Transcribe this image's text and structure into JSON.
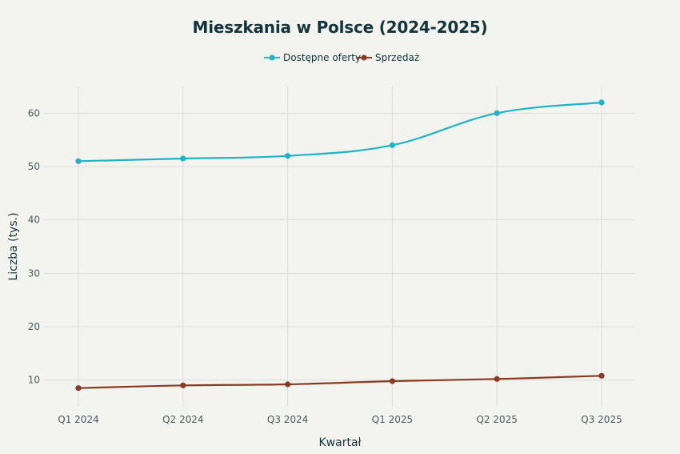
{
  "chart_data": {
    "type": "line",
    "title": "Mieszkania w Polsce (2024-2025)",
    "xlabel": "Kwartał",
    "ylabel": "Liczba (tys.)",
    "categories": [
      "Q1 2024",
      "Q2 2024",
      "Q3 2024",
      "Q1 2025",
      "Q2 2025",
      "Q3 2025"
    ],
    "ylim": [
      5,
      65
    ],
    "yticks": [
      10,
      20,
      30,
      40,
      50,
      60
    ],
    "grid": true,
    "legend_position": "top-center",
    "series": [
      {
        "name": "Dostępne oferty",
        "color": "#1fb3c6",
        "values": [
          51,
          51.5,
          52,
          54,
          60,
          62
        ]
      },
      {
        "name": "Sprzedaż",
        "color": "#8b3a22",
        "values": [
          8.5,
          9,
          9.2,
          9.8,
          10.2,
          10.8
        ]
      }
    ]
  }
}
